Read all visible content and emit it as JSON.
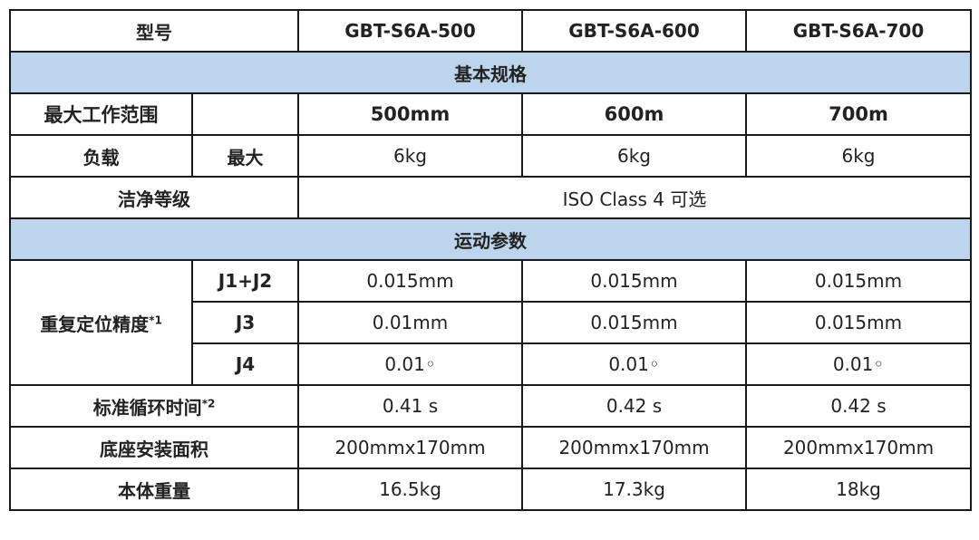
{
  "header": {
    "label": "型号",
    "models": [
      "GBT-S6A-500",
      "GBT-S6A-600",
      "GBT-S6A-700"
    ]
  },
  "section_basic": "基本规格",
  "range": {
    "label": "最大工作范围",
    "values": [
      "500mm",
      "600m",
      "700m"
    ]
  },
  "load": {
    "label": "负载",
    "sub": "最大",
    "values": [
      "6kg",
      "6kg",
      "6kg"
    ]
  },
  "clean": {
    "label": "洁净等级",
    "value": "ISO Class 4 可选"
  },
  "section_motion": "运动参数",
  "repeat": {
    "label": "重复定位精度",
    "note": "*1",
    "rows": [
      {
        "sub": "J1+J2",
        "values": [
          "0.015mm",
          "0.015mm",
          "0.015mm"
        ]
      },
      {
        "sub": "J3",
        "values": [
          "0.01mm",
          "0.015mm",
          "0.015mm"
        ]
      },
      {
        "sub": "J4",
        "values": [
          "0.01◦",
          "0.01◦",
          "0.01◦"
        ]
      }
    ]
  },
  "cycle": {
    "label": "标准循环时间",
    "note": "*2",
    "values": [
      "0.41 s",
      "0.42 s",
      "0.42 s"
    ]
  },
  "base": {
    "label": "底座安装面积",
    "values": [
      "200mmx170mm",
      "200mmx170mm",
      "200mmx170mm"
    ]
  },
  "weight": {
    "label": "本体重量",
    "values": [
      "16.5kg",
      "17.3kg",
      "18kg"
    ]
  },
  "colors": {
    "section_bg": "#bcd4ec",
    "border": "#1a1a1a"
  }
}
